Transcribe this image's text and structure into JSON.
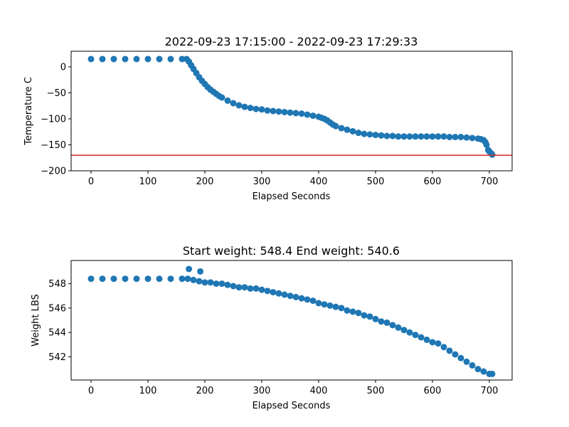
{
  "chart_data": [
    {
      "type": "scatter",
      "title": "2022-09-23 17:15:00 - 2022-09-23 17:29:33",
      "xlabel": "Elapsed Seconds",
      "ylabel": "Temperature C",
      "xlim": [
        -35,
        740
      ],
      "ylim": [
        -200,
        30
      ],
      "xticks": [
        0,
        100,
        200,
        300,
        400,
        500,
        600,
        700
      ],
      "yticks": [
        -200,
        -150,
        -100,
        -50,
        0
      ],
      "ytick_labels": [
        "−200",
        "−150",
        "−100",
        "−50",
        "0"
      ],
      "grid": false,
      "marker_color": "#1f77b4",
      "reference_line": {
        "y": -170,
        "color": "#d62728"
      },
      "series": [
        {
          "x": [
            0,
            20,
            40,
            60,
            80,
            100,
            120,
            140,
            160,
            168,
            172,
            176,
            180,
            185,
            190,
            195,
            200,
            205,
            210,
            215,
            220,
            225,
            230,
            240,
            250,
            260,
            270,
            280,
            290,
            300,
            310,
            320,
            330,
            340,
            350,
            360,
            370,
            380,
            390,
            400,
            405,
            410,
            415,
            420,
            425,
            430,
            440,
            450,
            460,
            470,
            480,
            490,
            500,
            510,
            520,
            530,
            540,
            550,
            560,
            570,
            580,
            590,
            600,
            610,
            620,
            630,
            640,
            650,
            660,
            670,
            680,
            685,
            690,
            693,
            695,
            698,
            700,
            703,
            705
          ],
          "y": [
            15,
            15,
            15,
            15,
            15,
            15,
            15,
            15,
            15,
            15,
            10,
            3,
            -4,
            -12,
            -20,
            -27,
            -33,
            -39,
            -44,
            -48,
            -52,
            -56,
            -59,
            -65,
            -70,
            -74,
            -77,
            -79,
            -81,
            -82,
            -84,
            -85,
            -86,
            -87,
            -88,
            -89,
            -90,
            -92,
            -94,
            -96,
            -98,
            -100,
            -103,
            -107,
            -111,
            -114,
            -118,
            -121,
            -124,
            -127,
            -129,
            -130,
            -131,
            -132,
            -133,
            -133,
            -134,
            -134,
            -134,
            -134,
            -134,
            -134,
            -134,
            -134,
            -134,
            -135,
            -135,
            -135,
            -136,
            -137,
            -138,
            -139,
            -141,
            -145,
            -150,
            -160,
            -163,
            -166,
            -169
          ]
        }
      ]
    },
    {
      "type": "scatter",
      "title": "Start weight: 548.4 End weight: 540.6",
      "xlabel": "Elapsed Seconds",
      "ylabel": "Weight LBS",
      "xlim": [
        -35,
        740
      ],
      "ylim": [
        540.1,
        549.9
      ],
      "xticks": [
        0,
        100,
        200,
        300,
        400,
        500,
        600,
        700
      ],
      "yticks": [
        542,
        544,
        546,
        548
      ],
      "grid": false,
      "marker_color": "#1f77b4",
      "series": [
        {
          "x": [
            0,
            20,
            40,
            60,
            80,
            100,
            120,
            140,
            160,
            170,
            180,
            190,
            200,
            210,
            220,
            230,
            240,
            250,
            260,
            270,
            280,
            290,
            300,
            310,
            320,
            330,
            340,
            350,
            360,
            370,
            380,
            390,
            400,
            410,
            420,
            430,
            440,
            450,
            460,
            470,
            480,
            490,
            500,
            510,
            520,
            530,
            540,
            550,
            560,
            570,
            580,
            590,
            600,
            610,
            620,
            630,
            640,
            650,
            660,
            670,
            680,
            690,
            700,
            705,
            172,
            192
          ],
          "y": [
            548.4,
            548.4,
            548.4,
            548.4,
            548.4,
            548.4,
            548.4,
            548.4,
            548.4,
            548.4,
            548.3,
            548.2,
            548.1,
            548.1,
            548.0,
            548.0,
            547.9,
            547.8,
            547.7,
            547.7,
            547.6,
            547.6,
            547.5,
            547.4,
            547.3,
            547.2,
            547.1,
            547.0,
            546.9,
            546.8,
            546.7,
            546.6,
            546.4,
            546.3,
            546.2,
            546.1,
            546.0,
            545.8,
            545.7,
            545.6,
            545.4,
            545.3,
            545.1,
            544.9,
            544.8,
            544.6,
            544.4,
            544.2,
            544.0,
            543.8,
            543.6,
            543.4,
            543.2,
            543.1,
            542.8,
            542.5,
            542.2,
            541.9,
            541.6,
            541.3,
            541.0,
            540.8,
            540.6,
            540.6,
            549.2,
            549.0
          ]
        }
      ]
    }
  ]
}
